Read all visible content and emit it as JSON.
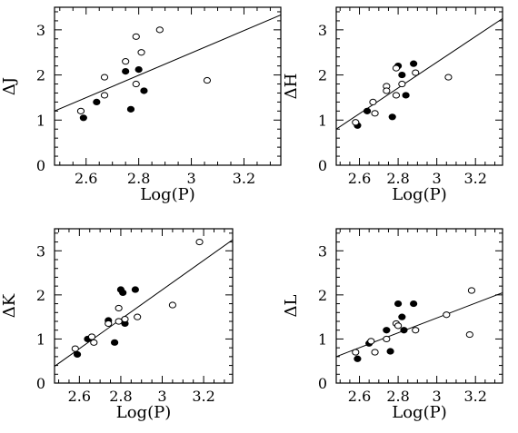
{
  "chart_data": [
    {
      "type": "scatter",
      "xlabel": "Log(P)",
      "ylabel": "ΔJ",
      "xlim": [
        2.48,
        3.34
      ],
      "ylim": [
        0,
        3.5
      ],
      "xticks": [
        "2.6",
        "2.8",
        "3",
        "3.2"
      ],
      "yticks": [
        "0",
        "1",
        "2",
        "3"
      ],
      "grid": false,
      "fit_line": [
        [
          2.48,
          1.2
        ],
        [
          3.34,
          3.33
        ]
      ],
      "series": [
        {
          "marker": "filled",
          "points": [
            [
              2.59,
              1.05
            ],
            [
              2.64,
              1.4
            ],
            [
              2.75,
              2.08
            ],
            [
              2.77,
              1.24
            ],
            [
              2.8,
              2.12
            ],
            [
              2.82,
              1.65
            ]
          ]
        },
        {
          "marker": "open",
          "points": [
            [
              2.58,
              1.2
            ],
            [
              2.67,
              1.95
            ],
            [
              2.67,
              1.55
            ],
            [
              2.75,
              2.3
            ],
            [
              2.79,
              1.8
            ],
            [
              2.79,
              2.85
            ],
            [
              2.81,
              2.5
            ],
            [
              2.88,
              3.0
            ],
            [
              3.06,
              1.88
            ]
          ]
        }
      ]
    },
    {
      "type": "scatter",
      "xlabel": "Log(P)",
      "ylabel": "ΔH",
      "xlim": [
        2.48,
        3.34
      ],
      "ylim": [
        0,
        3.5
      ],
      "xticks": [
        "2.6",
        "2.8",
        "3",
        "3.2"
      ],
      "yticks": [
        "0",
        "1",
        "2",
        "3"
      ],
      "grid": false,
      "fit_line": [
        [
          2.48,
          0.8
        ],
        [
          3.34,
          3.25
        ]
      ],
      "series": [
        {
          "marker": "filled",
          "points": [
            [
              2.59,
              0.88
            ],
            [
              2.64,
              1.2
            ],
            [
              2.77,
              1.07
            ],
            [
              2.8,
              2.2
            ],
            [
              2.82,
              2.0
            ],
            [
              2.84,
              1.55
            ],
            [
              2.88,
              2.25
            ]
          ]
        },
        {
          "marker": "open",
          "points": [
            [
              2.58,
              0.95
            ],
            [
              2.67,
              1.4
            ],
            [
              2.68,
              1.15
            ],
            [
              2.74,
              1.75
            ],
            [
              2.74,
              1.65
            ],
            [
              2.79,
              2.15
            ],
            [
              2.79,
              1.55
            ],
            [
              2.82,
              1.8
            ],
            [
              2.89,
              2.05
            ],
            [
              3.06,
              1.95
            ]
          ]
        }
      ]
    },
    {
      "type": "scatter",
      "xlabel": "Log(P)",
      "ylabel": "ΔK",
      "xlim": [
        2.48,
        3.34
      ],
      "ylim": [
        0,
        3.5
      ],
      "xticks": [
        "2.6",
        "2.8",
        "3",
        "3.2"
      ],
      "yticks": [
        "0",
        "1",
        "2",
        "3"
      ],
      "grid": false,
      "fit_line": [
        [
          2.48,
          0.38
        ],
        [
          3.34,
          3.25
        ]
      ],
      "series": [
        {
          "marker": "filled",
          "points": [
            [
              2.59,
              0.65
            ],
            [
              2.64,
              1.0
            ],
            [
              2.74,
              1.42
            ],
            [
              2.77,
              0.92
            ],
            [
              2.8,
              2.12
            ],
            [
              2.81,
              2.05
            ],
            [
              2.82,
              1.35
            ],
            [
              2.87,
              2.12
            ]
          ]
        },
        {
          "marker": "open",
          "points": [
            [
              2.58,
              0.78
            ],
            [
              2.66,
              1.05
            ],
            [
              2.67,
              0.92
            ],
            [
              2.74,
              1.35
            ],
            [
              2.79,
              1.4
            ],
            [
              2.79,
              1.7
            ],
            [
              2.82,
              1.45
            ],
            [
              2.88,
              1.5
            ],
            [
              3.05,
              1.77
            ],
            [
              3.18,
              3.2
            ]
          ]
        }
      ]
    },
    {
      "type": "scatter",
      "xlabel": "Log(P)",
      "ylabel": "ΔL",
      "xlim": [
        2.48,
        3.34
      ],
      "ylim": [
        0,
        3.5
      ],
      "xticks": [
        "2.6",
        "2.8",
        "3",
        "3.2"
      ],
      "yticks": [
        "0",
        "1",
        "2",
        "3"
      ],
      "grid": false,
      "fit_line": [
        [
          2.48,
          0.6
        ],
        [
          3.34,
          2.05
        ]
      ],
      "series": [
        {
          "marker": "filled",
          "points": [
            [
              2.59,
              0.55
            ],
            [
              2.65,
              0.9
            ],
            [
              2.74,
              1.2
            ],
            [
              2.76,
              0.72
            ],
            [
              2.8,
              1.8
            ],
            [
              2.82,
              1.5
            ],
            [
              2.83,
              1.2
            ],
            [
              2.88,
              1.8
            ]
          ]
        },
        {
          "marker": "open",
          "points": [
            [
              2.58,
              0.7
            ],
            [
              2.66,
              0.95
            ],
            [
              2.68,
              0.7
            ],
            [
              2.74,
              1.0
            ],
            [
              2.79,
              1.35
            ],
            [
              2.8,
              1.3
            ],
            [
              2.89,
              1.2
            ],
            [
              3.05,
              1.55
            ],
            [
              3.17,
              1.1
            ],
            [
              3.18,
              2.1
            ]
          ]
        }
      ]
    }
  ]
}
